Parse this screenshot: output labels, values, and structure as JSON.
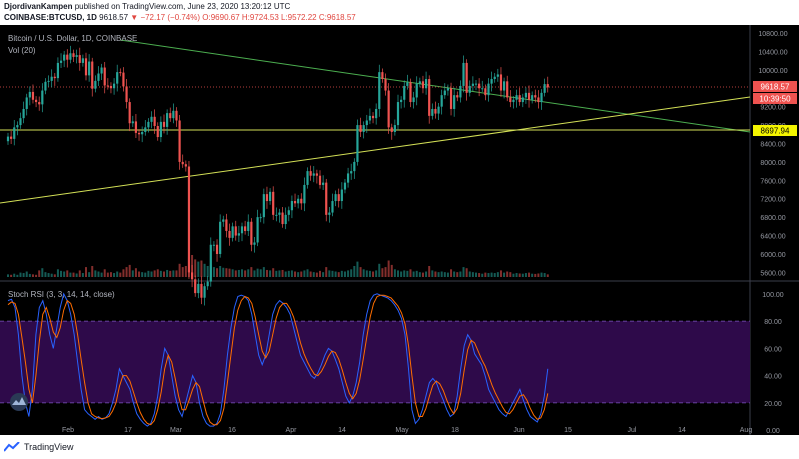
{
  "header": {
    "author": "DjordivanKampen",
    "published_text": "published on TradingView.com, June 23, 2020 13:20:12 UTC",
    "symbol": "COINBASE:BTCUSD, 1D",
    "last": "9618.57",
    "change": "▼ −72.17 (−0.74%)",
    "ohlc": "O:9690.67 H:9724.53 L:9572.22 C:9618.57"
  },
  "chart_labels": {
    "main_title": "Bitcoin / U.S. Dollar, 1D, COINBASE",
    "vol_label": "Vol (20)",
    "rsi_label": "Stoch RSI (3, 3, 14, 14, close)",
    "price_tag": "9618.57",
    "countdown_tag": "10:39:50",
    "level_tag": "8697.94"
  },
  "colors": {
    "up": "#26a69a",
    "down": "#ef5350",
    "rsi_k": "#2962ff",
    "rsi_d": "#ff6d00",
    "rsi_band": "#2e0a4a",
    "green_line": "#4caf50",
    "yellow_line": "#d4e157",
    "level_tag_bg": "#f5f500",
    "price_tag_bg": "#ef5350"
  },
  "footer": {
    "brand": "TradingView"
  },
  "chart_data": [
    {
      "type": "candlestick",
      "title": "Bitcoin / U.S. Dollar, 1D, COINBASE",
      "x_start": "2020-01-24",
      "ylim": [
        5500,
        10800
      ],
      "y_ticks": [
        5600,
        6000,
        6400,
        6800,
        7200,
        7600,
        8000,
        8400,
        8800,
        9200,
        9600,
        10000,
        10400,
        10800
      ],
      "x_ticks": [
        "Feb",
        "17",
        "Mar",
        "16",
        "Apr",
        "14",
        "May",
        "18",
        "Jun",
        "15",
        "Jul",
        "14",
        "Aug"
      ],
      "close": [
        8550,
        8500,
        8750,
        8800,
        8950,
        9150,
        9400,
        9520,
        9350,
        9300,
        9250,
        9550,
        9740,
        9760,
        9850,
        9820,
        10150,
        10200,
        10330,
        10220,
        10360,
        10280,
        10320,
        10150,
        10250,
        9880,
        10180,
        9590,
        9760,
        9920,
        10050,
        9660,
        9650,
        9600,
        9700,
        9950,
        9940,
        9640,
        9300,
        8840,
        8880,
        8630,
        8600,
        8650,
        8750,
        8870,
        8980,
        8780,
        8540,
        8870,
        8760,
        9060,
        8950,
        9110,
        8900,
        8000,
        7950,
        7900,
        5600,
        5450,
        5150,
        5350,
        5050,
        5300,
        5400,
        6200,
        6200,
        6000,
        6700,
        6750,
        6500,
        6350,
        6600,
        6400,
        6450,
        6600,
        6500,
        6700,
        6200,
        6250,
        6800,
        6800,
        7300,
        7150,
        7350,
        6850,
        6850,
        6900,
        6650,
        6850,
        6950,
        7150,
        7100,
        7200,
        7100,
        7500,
        7800,
        7700,
        7750,
        7700,
        7500,
        7550,
        6850,
        6900,
        7150,
        7300,
        7150,
        7400,
        7550,
        7750,
        7800,
        8000,
        8800,
        8650,
        8800,
        8900,
        9000,
        8950,
        9150,
        9950,
        9800,
        9550,
        8750,
        8650,
        8800,
        9300,
        9350,
        9650,
        9730,
        9300,
        9400,
        9700,
        9750,
        9600,
        9800,
        9000,
        9150,
        9050,
        9200,
        9450,
        9550,
        9600,
        9150,
        9450,
        9400,
        9650,
        10150,
        9500,
        9650,
        9700,
        9700,
        9600,
        9600,
        9450,
        9700,
        9800,
        9850,
        9900,
        9550,
        9750,
        9400,
        9300,
        9350,
        9450,
        9300,
        9400,
        9500,
        9350,
        9450,
        9400,
        9300,
        9500,
        9690,
        9618.57
      ],
      "volume_scale": [
        0.12,
        0.1,
        0.15,
        0.1,
        0.2,
        0.18,
        0.25,
        0.14,
        0.12,
        0.1,
        0.3,
        0.4,
        0.22,
        0.18,
        0.15,
        0.12,
        0.35,
        0.28,
        0.25,
        0.3,
        0.2,
        0.2,
        0.16,
        0.3,
        0.18,
        0.45,
        0.22,
        0.5,
        0.3,
        0.25,
        0.2,
        0.35,
        0.2,
        0.22,
        0.18,
        0.25,
        0.2,
        0.35,
        0.45,
        0.55,
        0.3,
        0.4,
        0.25,
        0.22,
        0.2,
        0.28,
        0.25,
        0.3,
        0.35,
        0.28,
        0.25,
        0.32,
        0.28,
        0.3,
        0.3,
        0.6,
        0.45,
        0.5,
        0.9,
        1.0,
        0.8,
        0.7,
        0.75,
        0.6,
        0.5,
        0.55,
        0.45,
        0.4,
        0.5,
        0.42,
        0.4,
        0.38,
        0.35,
        0.3,
        0.32,
        0.35,
        0.3,
        0.35,
        0.45,
        0.3,
        0.38,
        0.35,
        0.45,
        0.32,
        0.3,
        0.4,
        0.28,
        0.3,
        0.32,
        0.25,
        0.28,
        0.3,
        0.25,
        0.22,
        0.25,
        0.3,
        0.35,
        0.25,
        0.22,
        0.2,
        0.28,
        0.22,
        0.45,
        0.3,
        0.28,
        0.25,
        0.22,
        0.28,
        0.25,
        0.3,
        0.35,
        0.5,
        0.7,
        0.45,
        0.35,
        0.3,
        0.28,
        0.25,
        0.3,
        0.6,
        0.4,
        0.45,
        0.75,
        0.55,
        0.35,
        0.3,
        0.25,
        0.3,
        0.28,
        0.35,
        0.25,
        0.28,
        0.22,
        0.2,
        0.25,
        0.5,
        0.3,
        0.25,
        0.22,
        0.25,
        0.22,
        0.2,
        0.35,
        0.25,
        0.22,
        0.25,
        0.45,
        0.4,
        0.25,
        0.22,
        0.2,
        0.18,
        0.15,
        0.2,
        0.18,
        0.2,
        0.18,
        0.22,
        0.3,
        0.2,
        0.25,
        0.22,
        0.15,
        0.18,
        0.16,
        0.15,
        0.18,
        0.2,
        0.15,
        0.14,
        0.16,
        0.2,
        0.18,
        0.12
      ]
    },
    {
      "type": "line",
      "title": "Stoch RSI (3, 3, 14, 14, close)",
      "ylim": [
        -5,
        105
      ],
      "y_ticks": [
        0,
        20,
        40,
        60,
        80,
        100
      ],
      "band": [
        20,
        80
      ],
      "series": [
        {
          "name": "K",
          "values": [
            95,
            96,
            90,
            70,
            40,
            20,
            10,
            30,
            70,
            90,
            95,
            85,
            70,
            60,
            75,
            90,
            100,
            95,
            85,
            70,
            50,
            30,
            15,
            12,
            10,
            8,
            10,
            8,
            9,
            12,
            20,
            30,
            45,
            40,
            35,
            30,
            20,
            12,
            8,
            5,
            3,
            5,
            12,
            25,
            45,
            60,
            55,
            40,
            25,
            15,
            10,
            20,
            30,
            40,
            35,
            20,
            10,
            5,
            3,
            3,
            5,
            12,
            30,
            55,
            75,
            90,
            98,
            99,
            98,
            95,
            85,
            70,
            55,
            48,
            55,
            70,
            85,
            92,
            95,
            93,
            90,
            85,
            75,
            65,
            55,
            50,
            45,
            40,
            38,
            42,
            48,
            55,
            60,
            58,
            52,
            45,
            35,
            25,
            20,
            25,
            35,
            50,
            70,
            85,
            95,
            99,
            100,
            99,
            98,
            97,
            95,
            92,
            88,
            82,
            70,
            45,
            15,
            5,
            8,
            15,
            25,
            35,
            38,
            35,
            28,
            22,
            15,
            10,
            12,
            25,
            45,
            62,
            70,
            66,
            56,
            52,
            48,
            40,
            30,
            25,
            20,
            15,
            12,
            10,
            15,
            20,
            25,
            30,
            22,
            15,
            10,
            8,
            6,
            12,
            25,
            45
          ]
        },
        {
          "name": "D",
          "values": [
            92,
            94,
            93,
            85,
            68,
            50,
            30,
            20,
            40,
            65,
            85,
            90,
            82,
            72,
            68,
            75,
            88,
            95,
            93,
            85,
            70,
            52,
            35,
            20,
            12,
            10,
            9,
            8.5,
            9,
            10,
            14,
            20,
            32,
            40,
            40,
            36,
            28,
            20,
            13,
            8,
            5,
            4,
            7,
            15,
            28,
            45,
            55,
            50,
            38,
            25,
            15,
            15,
            22,
            30,
            35,
            32,
            22,
            12,
            6,
            4,
            4,
            7,
            16,
            35,
            55,
            75,
            88,
            95,
            98,
            97,
            93,
            83,
            70,
            58,
            53,
            58,
            70,
            82,
            90,
            93,
            93,
            89,
            83,
            74,
            64,
            56,
            50,
            45,
            41,
            40,
            43,
            48,
            54,
            58,
            57,
            52,
            44,
            35,
            27,
            23,
            27,
            37,
            52,
            68,
            83,
            93,
            98,
            99,
            99,
            98,
            97,
            94,
            91,
            86,
            78,
            62,
            40,
            20,
            10,
            10,
            16,
            25,
            33,
            36,
            34,
            29,
            22,
            16,
            12,
            16,
            27,
            44,
            59,
            66,
            64,
            58,
            52,
            47,
            40,
            33,
            27,
            22,
            17,
            13,
            12,
            15,
            20,
            25,
            26,
            22,
            16,
            11,
            8,
            9,
            15,
            27
          ]
        }
      ]
    }
  ]
}
